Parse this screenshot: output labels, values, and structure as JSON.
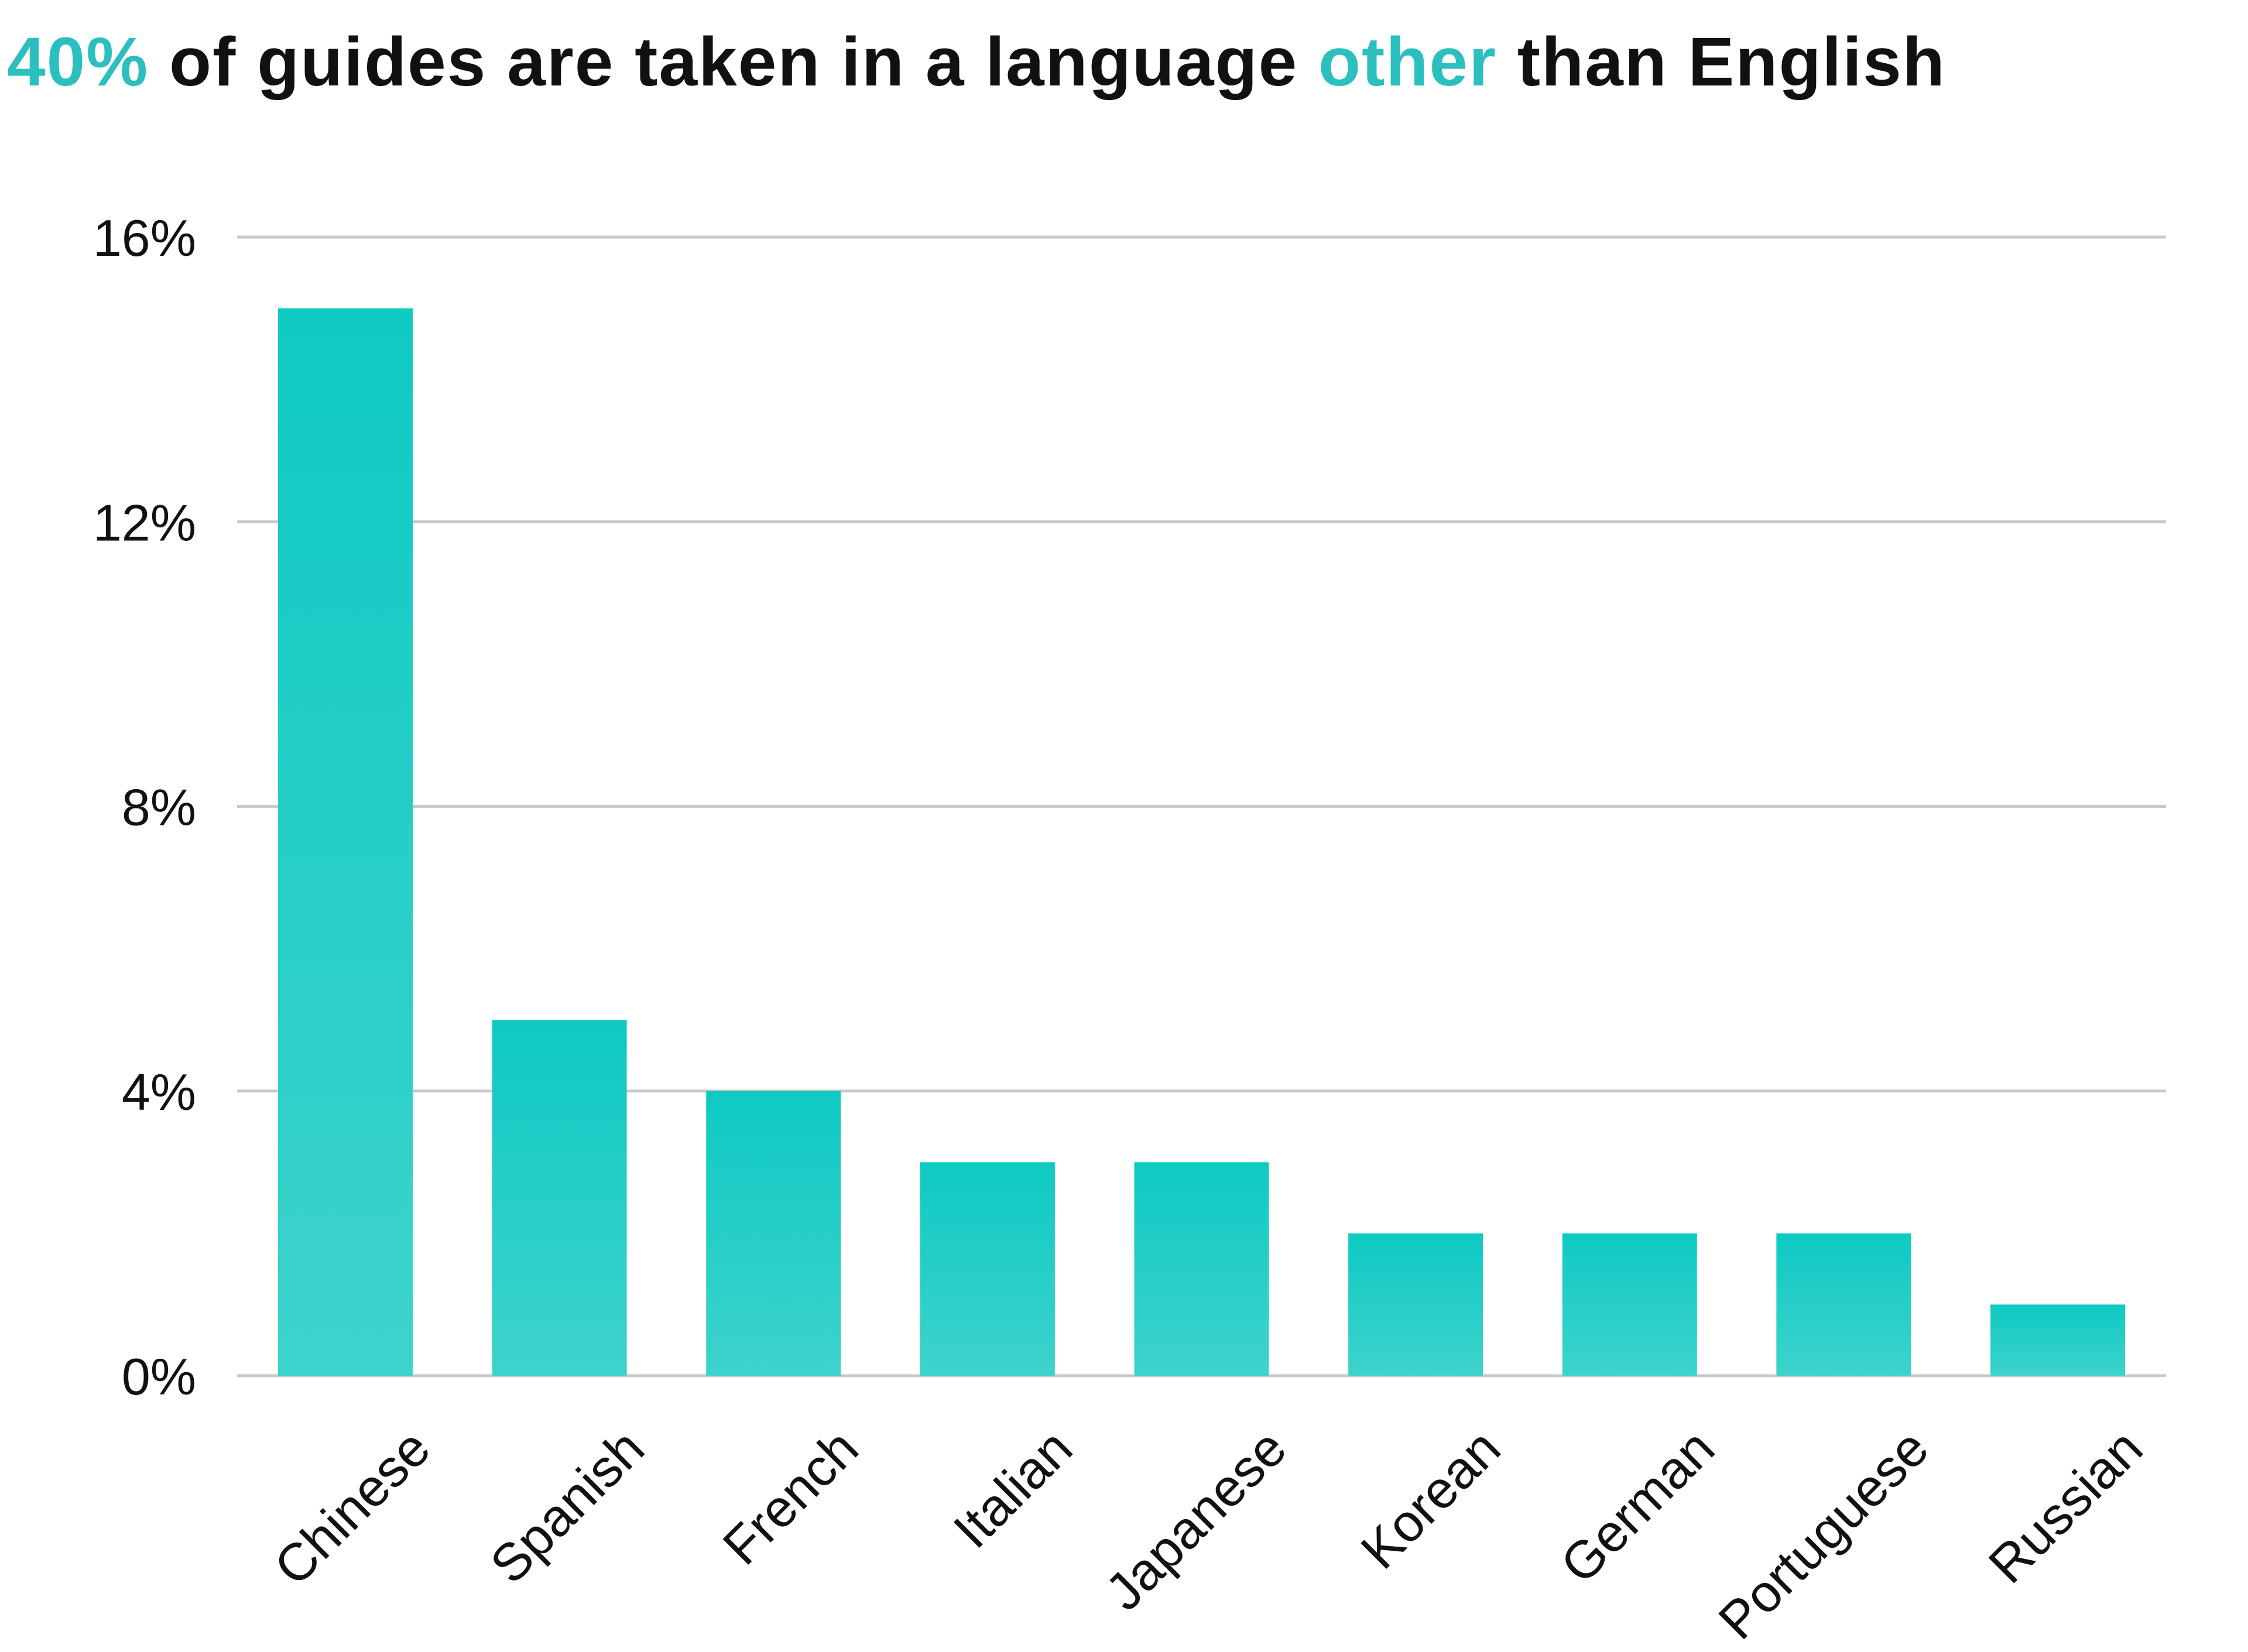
{
  "chart_data": {
    "type": "bar",
    "title_parts": [
      {
        "text": "40%",
        "highlight": true
      },
      {
        "text": " of guides are taken in a language ",
        "highlight": false
      },
      {
        "text": "other",
        "highlight": true
      },
      {
        "text": " than English",
        "highlight": false
      }
    ],
    "categories": [
      "Chinese",
      "Spanish",
      "French",
      "Italian",
      "Japanese",
      "Korean",
      "German",
      "Portuguese",
      "Russian"
    ],
    "values": [
      15,
      5,
      4,
      3,
      3,
      2,
      2,
      2,
      1
    ],
    "unit": "%",
    "ylim": [
      0,
      16
    ],
    "yticks": [
      0,
      4,
      8,
      12,
      16
    ],
    "ytick_labels": [
      "0%",
      "4%",
      "8%",
      "12%",
      "16%"
    ],
    "xlabel": "",
    "ylabel": "",
    "grid": true,
    "legend": "none",
    "colors": {
      "highlight": "#2bbfbf",
      "bar_top": "#0ecac3",
      "bar_bottom": "#3dd3cc",
      "grid": "#c9c9c9",
      "text": "#111111"
    }
  }
}
